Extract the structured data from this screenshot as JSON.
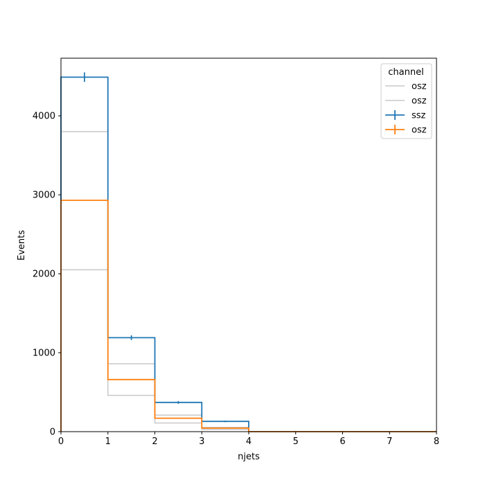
{
  "chart_data": {
    "type": "step-histogram",
    "xlabel": "njets",
    "ylabel": "Events",
    "xlim": [
      0,
      8
    ],
    "ylim": [
      0,
      4730
    ],
    "x_ticks": [
      0,
      1,
      2,
      3,
      4,
      5,
      6,
      7,
      8
    ],
    "y_ticks": [
      0,
      1000,
      2000,
      3000,
      4000
    ],
    "bin_edges": [
      0,
      1,
      2,
      3,
      4,
      5,
      6,
      7,
      8
    ],
    "legend": {
      "title": "channel",
      "position": "top-right"
    },
    "series": [
      {
        "name": "osz",
        "style": "line",
        "color": "#c8c8c8",
        "values": [
          3800,
          860,
          210,
          55,
          0,
          0,
          0,
          0
        ]
      },
      {
        "name": "osz",
        "style": "line",
        "color": "#c8c8c8",
        "values": [
          2050,
          460,
          110,
          30,
          0,
          0,
          0,
          0
        ]
      },
      {
        "name": "ssz",
        "style": "errorbar",
        "color": "#1f77b4",
        "values": [
          4490,
          1190,
          370,
          130,
          0,
          0,
          0,
          0
        ],
        "errors": [
          60,
          30,
          17,
          10,
          0,
          0,
          0,
          0
        ]
      },
      {
        "name": "osz",
        "style": "errorbar",
        "color": "#ff7f0e",
        "values": [
          2930,
          660,
          170,
          45,
          0,
          0,
          0,
          0
        ],
        "errors": [
          0,
          0,
          0,
          0,
          0,
          0,
          0,
          0
        ]
      }
    ]
  }
}
